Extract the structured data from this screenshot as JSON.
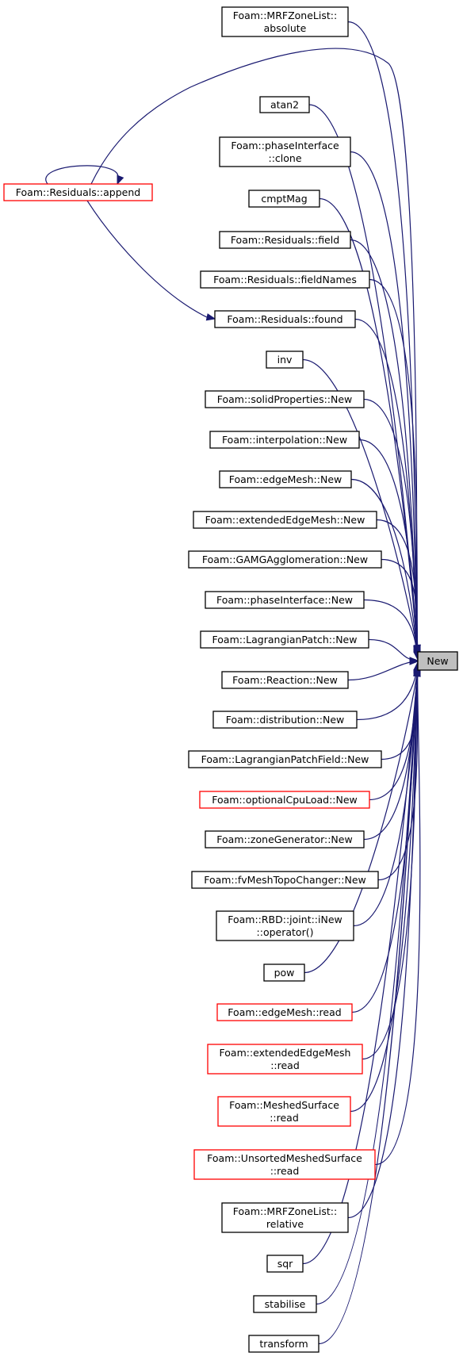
{
  "target": {
    "label": "New"
  },
  "nodes": [
    {
      "id": "n_mrf_abs",
      "lines": [
        "Foam::MRFZoneList::",
        "absolute"
      ],
      "red": false
    },
    {
      "id": "n_atan2",
      "lines": [
        "atan2"
      ],
      "red": false
    },
    {
      "id": "n_phase_clone",
      "lines": [
        "Foam::phaseInterface",
        "::clone"
      ],
      "red": false
    },
    {
      "id": "n_cmptmag",
      "lines": [
        "cmptMag"
      ],
      "red": false
    },
    {
      "id": "n_res_field",
      "lines": [
        "Foam::Residuals::field"
      ],
      "red": false
    },
    {
      "id": "n_res_fieldnames",
      "lines": [
        "Foam::Residuals::fieldNames"
      ],
      "red": false
    },
    {
      "id": "n_res_found",
      "lines": [
        "Foam::Residuals::found"
      ],
      "red": false
    },
    {
      "id": "n_inv",
      "lines": [
        "inv"
      ],
      "red": false
    },
    {
      "id": "n_solid_new",
      "lines": [
        "Foam::solidProperties::New"
      ],
      "red": false
    },
    {
      "id": "n_interp_new",
      "lines": [
        "Foam::interpolation::New"
      ],
      "red": false
    },
    {
      "id": "n_edge_new",
      "lines": [
        "Foam::edgeMesh::New"
      ],
      "red": false
    },
    {
      "id": "n_extedge_new",
      "lines": [
        "Foam::extendedEdgeMesh::New"
      ],
      "red": false
    },
    {
      "id": "n_gamg_new",
      "lines": [
        "Foam::GAMGAgglomeration::New"
      ],
      "red": false
    },
    {
      "id": "n_phase_new",
      "lines": [
        "Foam::phaseInterface::New"
      ],
      "red": false
    },
    {
      "id": "n_lagpatch_new",
      "lines": [
        "Foam::LagrangianPatch::New"
      ],
      "red": false
    },
    {
      "id": "n_reaction_new",
      "lines": [
        "Foam::Reaction::New"
      ],
      "red": false
    },
    {
      "id": "n_distrib_new",
      "lines": [
        "Foam::distribution::New"
      ],
      "red": false
    },
    {
      "id": "n_lagfield_new",
      "lines": [
        "Foam::LagrangianPatchField::New"
      ],
      "red": false
    },
    {
      "id": "n_optcpu_new",
      "lines": [
        "Foam::optionalCpuLoad::New"
      ],
      "red": true
    },
    {
      "id": "n_zonegen_new",
      "lines": [
        "Foam::zoneGenerator::New"
      ],
      "red": false
    },
    {
      "id": "n_fvtopo_new",
      "lines": [
        "Foam::fvMeshTopoChanger::New"
      ],
      "red": false
    },
    {
      "id": "n_rbd_inew",
      "lines": [
        "Foam::RBD::joint::iNew",
        "::operator()"
      ],
      "red": false
    },
    {
      "id": "n_pow",
      "lines": [
        "pow"
      ],
      "red": false
    },
    {
      "id": "n_edge_read",
      "lines": [
        "Foam::edgeMesh::read"
      ],
      "red": true
    },
    {
      "id": "n_extedge_read",
      "lines": [
        "Foam::extendedEdgeMesh",
        "::read"
      ],
      "red": true
    },
    {
      "id": "n_meshed_read",
      "lines": [
        "Foam::MeshedSurface",
        "::read"
      ],
      "red": true
    },
    {
      "id": "n_unsorted_read",
      "lines": [
        "Foam::UnsortedMeshedSurface",
        "::read"
      ],
      "red": true
    },
    {
      "id": "n_mrf_rel",
      "lines": [
        "Foam::MRFZoneList::",
        "relative"
      ],
      "red": false
    },
    {
      "id": "n_sqr",
      "lines": [
        "sqr"
      ],
      "red": false
    },
    {
      "id": "n_stabilise",
      "lines": [
        "stabilise"
      ],
      "red": false
    },
    {
      "id": "n_transform",
      "lines": [
        "transform"
      ],
      "red": false
    },
    {
      "id": "n_res_append",
      "lines": [
        "Foam::Residuals::append"
      ],
      "red": true
    }
  ],
  "colors": {
    "edge": "#191970",
    "target_fill": "#bfbfbf",
    "red_border": "#ff0000",
    "border": "#000000"
  }
}
